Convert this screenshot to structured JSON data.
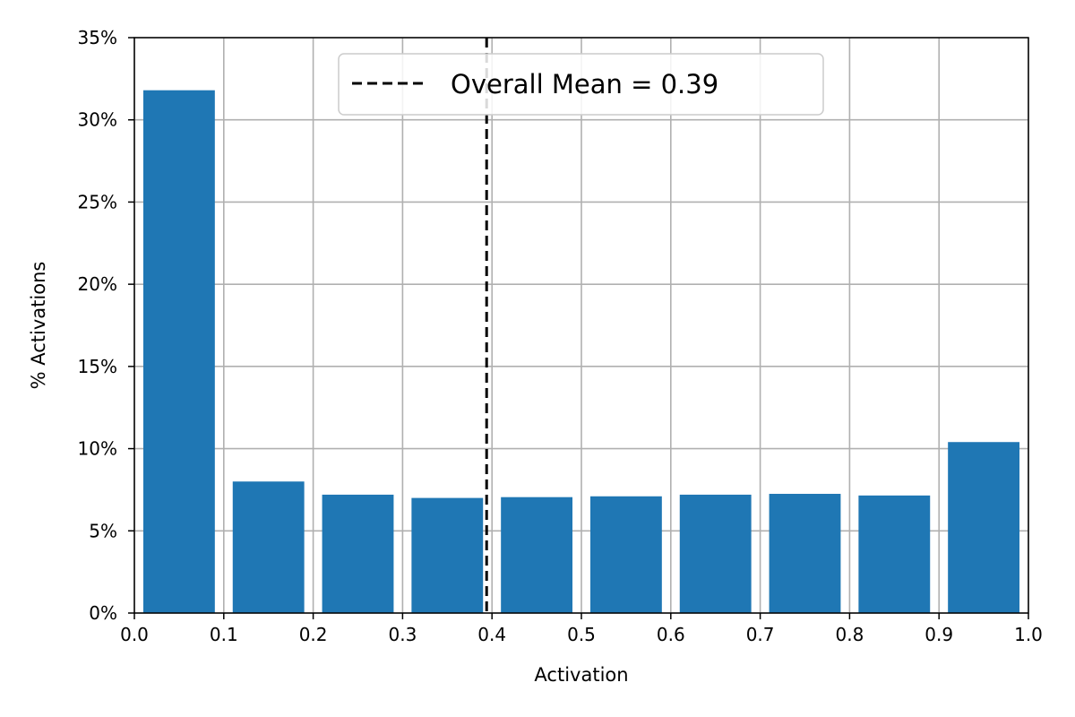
{
  "chart_data": {
    "type": "bar",
    "xlabel": "Activation",
    "ylabel": "% Activations",
    "xlim": [
      0.0,
      1.0
    ],
    "ylim": [
      0,
      35
    ],
    "x_ticks": [
      "0.0",
      "0.1",
      "0.2",
      "0.3",
      "0.4",
      "0.5",
      "0.6",
      "0.7",
      "0.8",
      "0.9",
      "1.0"
    ],
    "y_ticks": [
      "0%",
      "5%",
      "10%",
      "15%",
      "20%",
      "25%",
      "30%",
      "35%"
    ],
    "grid": true,
    "bins": [
      {
        "start": 0.0,
        "end": 0.1,
        "value": 31.8
      },
      {
        "start": 0.1,
        "end": 0.2,
        "value": 8.0
      },
      {
        "start": 0.2,
        "end": 0.3,
        "value": 7.2
      },
      {
        "start": 0.3,
        "end": 0.4,
        "value": 7.0
      },
      {
        "start": 0.4,
        "end": 0.5,
        "value": 7.05
      },
      {
        "start": 0.5,
        "end": 0.6,
        "value": 7.1
      },
      {
        "start": 0.6,
        "end": 0.7,
        "value": 7.2
      },
      {
        "start": 0.7,
        "end": 0.8,
        "value": 7.25
      },
      {
        "start": 0.8,
        "end": 0.9,
        "value": 7.15
      },
      {
        "start": 0.9,
        "end": 1.0,
        "value": 10.4
      }
    ],
    "bar_color": "#1f77b4",
    "mean_line": {
      "x": 0.394,
      "style": "dashed",
      "color": "#000000"
    },
    "legend": {
      "label": "Overall Mean = 0.39",
      "placement": "top-center"
    }
  }
}
